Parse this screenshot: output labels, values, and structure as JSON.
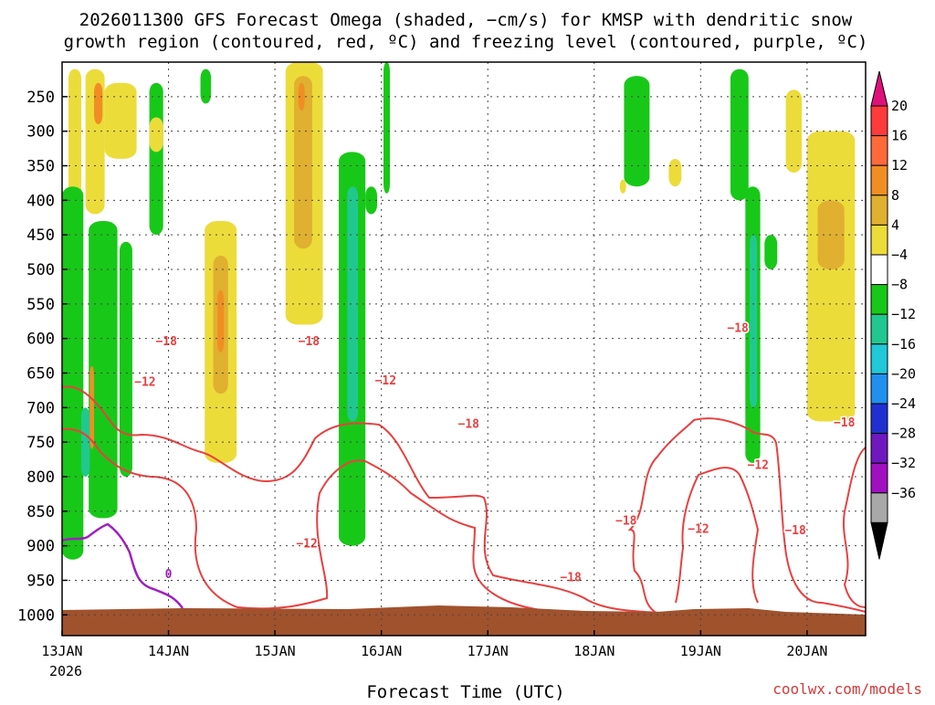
{
  "title_line1": "2026011300 GFS Forecast Omega (shaded, −cm/s) for KMSP with dendritic snow",
  "title_line2": "growth region (contoured, red, ºC) and freezing level (contoured, purple, ºC)",
  "watermark": "coolwx.com/models",
  "chart_data": {
    "type": "heatmap",
    "title": "2026011300 GFS Forecast Omega (shaded, −cm/s) for KMSP with dendritic snow growth region (contoured, red, ºC) and freezing level (contoured, purple, ºC)",
    "xlabel": "Forecast Time (UTC)",
    "ylabel": "",
    "x_ticks": [
      "13JAN",
      "14JAN",
      "15JAN",
      "16JAN",
      "17JAN",
      "18JAN",
      "19JAN",
      "20JAN"
    ],
    "x_tick_year": "2026",
    "x_range_days": [
      13,
      20.55
    ],
    "y_ticks": [
      250,
      300,
      350,
      400,
      450,
      500,
      550,
      600,
      650,
      700,
      750,
      800,
      850,
      900,
      950,
      1000
    ],
    "y_range_hPa": [
      200,
      1030
    ],
    "grid": true,
    "colorbar": {
      "labels": [
        "20",
        "16",
        "12",
        "8",
        "4",
        "−4",
        "−8",
        "−12",
        "−16",
        "−20",
        "−24",
        "−28",
        "−32",
        "−36"
      ],
      "colors": [
        "#ff3a3a",
        "#ff6a3a",
        "#f08e24",
        "#e0b030",
        "#ecdc3a",
        "#ffffff",
        "#18c818",
        "#20c890",
        "#20c8d8",
        "#2090f0",
        "#2030d0",
        "#7018c0",
        "#a010c0",
        "#a8a8a8"
      ],
      "top_arrow_color": "#e0107a",
      "bottom_arrow_color": "#000000"
    },
    "contour_labels": [
      {
        "text": "−18",
        "day": 13.98,
        "p": 603
      },
      {
        "text": "−12",
        "day": 13.78,
        "p": 662
      },
      {
        "text": "−18",
        "day": 15.32,
        "p": 603
      },
      {
        "text": "−12",
        "day": 16.04,
        "p": 660
      },
      {
        "text": "−18",
        "day": 16.82,
        "p": 723
      },
      {
        "text": "−12",
        "day": 15.3,
        "p": 896
      },
      {
        "text": "0",
        "day": 14.0,
        "p": 940
      },
      {
        "text": "−18",
        "day": 17.78,
        "p": 945
      },
      {
        "text": "−18",
        "day": 18.3,
        "p": 863
      },
      {
        "text": "−12",
        "day": 18.98,
        "p": 875
      },
      {
        "text": "−18",
        "day": 19.35,
        "p": 584
      },
      {
        "text": "−12",
        "day": 19.54,
        "p": 782
      },
      {
        "text": "−18",
        "day": 19.89,
        "p": 877
      },
      {
        "text": "−18",
        "day": 20.35,
        "p": 721
      }
    ],
    "shaded_regions": [
      {
        "color": "#ecdc3a",
        "day": [
          13.06,
          13.18
        ],
        "p": [
          210,
          560
        ]
      },
      {
        "color": "#ecdc3a",
        "day": [
          13.22,
          13.4
        ],
        "p": [
          210,
          420
        ]
      },
      {
        "color": "#ecdc3a",
        "day": [
          13.4,
          13.7
        ],
        "p": [
          230,
          340
        ]
      },
      {
        "color": "#f08e24",
        "day": [
          13.3,
          13.38
        ],
        "p": [
          230,
          290
        ]
      },
      {
        "color": "#18c818",
        "day": [
          13.0,
          13.2
        ],
        "p": [
          380,
          920
        ]
      },
      {
        "color": "#18c818",
        "day": [
          13.25,
          13.52
        ],
        "p": [
          430,
          860
        ]
      },
      {
        "color": "#18c818",
        "day": [
          13.54,
          13.66
        ],
        "p": [
          460,
          800
        ]
      },
      {
        "color": "#20c890",
        "day": [
          13.18,
          13.26
        ],
        "p": [
          700,
          800
        ]
      },
      {
        "color": "#f08e24",
        "day": [
          13.26,
          13.3
        ],
        "p": [
          640,
          760
        ]
      },
      {
        "color": "#18c818",
        "day": [
          13.82,
          13.95
        ],
        "p": [
          230,
          450
        ]
      },
      {
        "color": "#ecdc3a",
        "day": [
          13.82,
          13.95
        ],
        "p": [
          280,
          330
        ]
      },
      {
        "color": "#18c818",
        "day": [
          14.3,
          14.4
        ],
        "p": [
          210,
          260
        ]
      },
      {
        "color": "#ecdc3a",
        "day": [
          14.34,
          14.64
        ],
        "p": [
          430,
          780
        ]
      },
      {
        "color": "#e0b030",
        "day": [
          14.42,
          14.56
        ],
        "p": [
          480,
          680
        ]
      },
      {
        "color": "#f08e24",
        "day": [
          14.46,
          14.52
        ],
        "p": [
          530,
          620
        ]
      },
      {
        "color": "#ecdc3a",
        "day": [
          15.1,
          15.45
        ],
        "p": [
          200,
          580
        ]
      },
      {
        "color": "#e0b030",
        "day": [
          15.18,
          15.35
        ],
        "p": [
          220,
          470
        ]
      },
      {
        "color": "#f08e24",
        "day": [
          15.22,
          15.28
        ],
        "p": [
          230,
          270
        ]
      },
      {
        "color": "#18c818",
        "day": [
          15.6,
          15.85
        ],
        "p": [
          330,
          900
        ]
      },
      {
        "color": "#20c890",
        "day": [
          15.68,
          15.78
        ],
        "p": [
          380,
          720
        ]
      },
      {
        "color": "#18c818",
        "day": [
          15.85,
          15.96
        ],
        "p": [
          380,
          420
        ]
      },
      {
        "color": "#18c818",
        "day": [
          16.02,
          16.08
        ],
        "p": [
          200,
          390
        ]
      },
      {
        "color": "#18c818",
        "day": [
          18.28,
          18.52
        ],
        "p": [
          220,
          380
        ]
      },
      {
        "color": "#ecdc3a",
        "day": [
          18.24,
          18.3
        ],
        "p": [
          370,
          390
        ]
      },
      {
        "color": "#18c818",
        "day": [
          19.28,
          19.45
        ],
        "p": [
          210,
          400
        ]
      },
      {
        "color": "#18c818",
        "day": [
          19.42,
          19.56
        ],
        "p": [
          380,
          780
        ]
      },
      {
        "color": "#20c890",
        "day": [
          19.46,
          19.53
        ],
        "p": [
          450,
          700
        ]
      },
      {
        "color": "#ecdc3a",
        "day": [
          19.8,
          19.95
        ],
        "p": [
          240,
          360
        ]
      },
      {
        "color": "#ecdc3a",
        "day": [
          20.0,
          20.45
        ],
        "p": [
          300,
          720
        ]
      },
      {
        "color": "#e0b030",
        "day": [
          20.1,
          20.35
        ],
        "p": [
          400,
          500
        ]
      },
      {
        "color": "#18c818",
        "day": [
          19.6,
          19.72
        ],
        "p": [
          450,
          500
        ]
      },
      {
        "color": "#ecdc3a",
        "day": [
          18.7,
          18.82
        ],
        "p": [
          340,
          380
        ]
      }
    ]
  }
}
